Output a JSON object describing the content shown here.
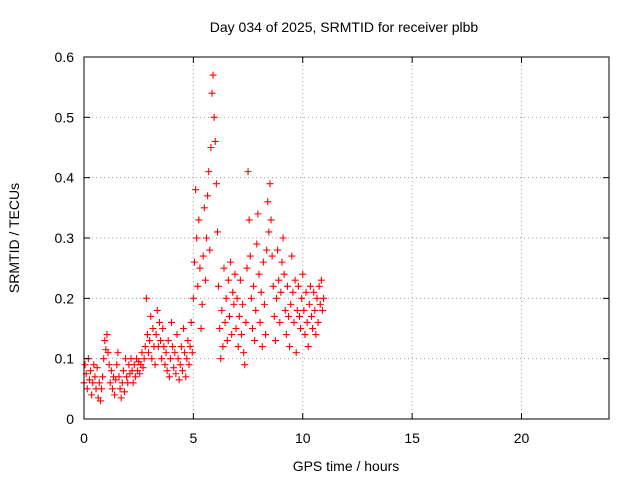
{
  "chart_data": {
    "type": "scatter",
    "title": "Day 034 of 2025, SRMTID for receiver plbb",
    "xlabel": "GPS time / hours",
    "ylabel": "SRMTID / TECUs",
    "xlim": [
      0,
      24
    ],
    "ylim": [
      0,
      0.6
    ],
    "x_ticks": [
      0,
      5,
      10,
      15,
      20
    ],
    "y_ticks": [
      0,
      0.1,
      0.2,
      0.3,
      0.4,
      0.5,
      0.6
    ],
    "x_tick_labels": [
      "0",
      "5",
      "10",
      "15",
      "20"
    ],
    "y_tick_labels": [
      "0",
      "0.1",
      "0.2",
      "0.3",
      "0.4",
      "0.5",
      "0.6"
    ],
    "grid": true,
    "marker": "+",
    "color": "#ff0000",
    "series": [
      {
        "name": "SRMTID",
        "points": [
          [
            0.0,
            0.06
          ],
          [
            0.05,
            0.09
          ],
          [
            0.1,
            0.075
          ],
          [
            0.15,
            0.05
          ],
          [
            0.2,
            0.1
          ],
          [
            0.25,
            0.065
          ],
          [
            0.3,
            0.08
          ],
          [
            0.35,
            0.04
          ],
          [
            0.4,
            0.06
          ],
          [
            0.45,
            0.09
          ],
          [
            0.5,
            0.07
          ],
          [
            0.55,
            0.05
          ],
          [
            0.6,
            0.085
          ],
          [
            0.65,
            0.035
          ],
          [
            0.7,
            0.06
          ],
          [
            0.75,
            0.03
          ],
          [
            0.8,
            0.05
          ],
          [
            0.85,
            0.07
          ],
          [
            0.9,
            0.1
          ],
          [
            0.95,
            0.13
          ],
          [
            1.0,
            0.115
          ],
          [
            1.05,
            0.14
          ],
          [
            1.1,
            0.11
          ],
          [
            1.15,
            0.09
          ],
          [
            1.2,
            0.06
          ],
          [
            1.25,
            0.08
          ],
          [
            1.3,
            0.05
          ],
          [
            1.35,
            0.07
          ],
          [
            1.4,
            0.04
          ],
          [
            1.45,
            0.065
          ],
          [
            1.5,
            0.09
          ],
          [
            1.55,
            0.11
          ],
          [
            1.6,
            0.07
          ],
          [
            1.65,
            0.05
          ],
          [
            1.7,
            0.035
          ],
          [
            1.75,
            0.06
          ],
          [
            1.8,
            0.08
          ],
          [
            1.85,
            0.045
          ],
          [
            1.9,
            0.1
          ],
          [
            1.95,
            0.07
          ],
          [
            2.0,
            0.06
          ],
          [
            2.05,
            0.09
          ],
          [
            2.1,
            0.075
          ],
          [
            2.15,
            0.1
          ],
          [
            2.2,
            0.08
          ],
          [
            2.25,
            0.06
          ],
          [
            2.3,
            0.09
          ],
          [
            2.35,
            0.07
          ],
          [
            2.4,
            0.1
          ],
          [
            2.45,
            0.08
          ],
          [
            2.5,
            0.095
          ],
          [
            2.55,
            0.075
          ],
          [
            2.6,
            0.09
          ],
          [
            2.65,
            0.11
          ],
          [
            2.7,
            0.085
          ],
          [
            2.75,
            0.1
          ],
          [
            2.8,
            0.12
          ],
          [
            2.85,
            0.2
          ],
          [
            2.9,
            0.14
          ],
          [
            2.95,
            0.11
          ],
          [
            3.0,
            0.13
          ],
          [
            3.05,
            0.17
          ],
          [
            3.1,
            0.1
          ],
          [
            3.15,
            0.15
          ],
          [
            3.2,
            0.12
          ],
          [
            3.25,
            0.09
          ],
          [
            3.3,
            0.14
          ],
          [
            3.35,
            0.18
          ],
          [
            3.4,
            0.12
          ],
          [
            3.45,
            0.16
          ],
          [
            3.5,
            0.13
          ],
          [
            3.55,
            0.1
          ],
          [
            3.6,
            0.15
          ],
          [
            3.65,
            0.12
          ],
          [
            3.7,
            0.09
          ],
          [
            3.75,
            0.11
          ],
          [
            3.8,
            0.08
          ],
          [
            3.85,
            0.13
          ],
          [
            3.9,
            0.07
          ],
          [
            3.95,
            0.1
          ],
          [
            4.0,
            0.16
          ],
          [
            4.05,
            0.12
          ],
          [
            4.1,
            0.085
          ],
          [
            4.15,
            0.11
          ],
          [
            4.2,
            0.075
          ],
          [
            4.25,
            0.14
          ],
          [
            4.3,
            0.1
          ],
          [
            4.35,
            0.065
          ],
          [
            4.4,
            0.09
          ],
          [
            4.45,
            0.12
          ],
          [
            4.5,
            0.08
          ],
          [
            4.55,
            0.15
          ],
          [
            4.6,
            0.11
          ],
          [
            4.65,
            0.07
          ],
          [
            4.7,
            0.1
          ],
          [
            4.75,
            0.13
          ],
          [
            4.8,
            0.09
          ],
          [
            4.85,
            0.12
          ],
          [
            4.9,
            0.16
          ],
          [
            4.95,
            0.11
          ],
          [
            5.0,
            0.2
          ],
          [
            5.05,
            0.26
          ],
          [
            5.1,
            0.38
          ],
          [
            5.15,
            0.3
          ],
          [
            5.2,
            0.22
          ],
          [
            5.25,
            0.33
          ],
          [
            5.3,
            0.25
          ],
          [
            5.35,
            0.15
          ],
          [
            5.4,
            0.19
          ],
          [
            5.45,
            0.27
          ],
          [
            5.5,
            0.35
          ],
          [
            5.55,
            0.23
          ],
          [
            5.6,
            0.3
          ],
          [
            5.65,
            0.37
          ],
          [
            5.7,
            0.41
          ],
          [
            5.75,
            0.28
          ],
          [
            5.8,
            0.45
          ],
          [
            5.85,
            0.54
          ],
          [
            5.9,
            0.57
          ],
          [
            5.95,
            0.5
          ],
          [
            6.0,
            0.46
          ],
          [
            6.05,
            0.39
          ],
          [
            6.1,
            0.31
          ],
          [
            6.15,
            0.22
          ],
          [
            6.2,
            0.15
          ],
          [
            6.25,
            0.1
          ],
          [
            6.3,
            0.18
          ],
          [
            6.35,
            0.12
          ],
          [
            6.4,
            0.25
          ],
          [
            6.45,
            0.16
          ],
          [
            6.5,
            0.2
          ],
          [
            6.55,
            0.13
          ],
          [
            6.6,
            0.23
          ],
          [
            6.65,
            0.17
          ],
          [
            6.7,
            0.26
          ],
          [
            6.75,
            0.14
          ],
          [
            6.8,
            0.21
          ],
          [
            6.85,
            0.19
          ],
          [
            6.9,
            0.24
          ],
          [
            6.95,
            0.15
          ],
          [
            7.0,
            0.2
          ],
          [
            7.05,
            0.12
          ],
          [
            7.1,
            0.17
          ],
          [
            7.15,
            0.23
          ],
          [
            7.2,
            0.14
          ],
          [
            7.25,
            0.19
          ],
          [
            7.3,
            0.11
          ],
          [
            7.35,
            0.09
          ],
          [
            7.4,
            0.16
          ],
          [
            7.45,
            0.25
          ],
          [
            7.5,
            0.41
          ],
          [
            7.55,
            0.33
          ],
          [
            7.6,
            0.27
          ],
          [
            7.65,
            0.2
          ],
          [
            7.7,
            0.15
          ],
          [
            7.75,
            0.22
          ],
          [
            7.8,
            0.13
          ],
          [
            7.85,
            0.18
          ],
          [
            7.9,
            0.29
          ],
          [
            7.95,
            0.34
          ],
          [
            8.0,
            0.24
          ],
          [
            8.05,
            0.16
          ],
          [
            8.1,
            0.21
          ],
          [
            8.15,
            0.12
          ],
          [
            8.2,
            0.26
          ],
          [
            8.25,
            0.19
          ],
          [
            8.3,
            0.14
          ],
          [
            8.35,
            0.28
          ],
          [
            8.4,
            0.36
          ],
          [
            8.45,
            0.31
          ],
          [
            8.5,
            0.39
          ],
          [
            8.55,
            0.33
          ],
          [
            8.6,
            0.27
          ],
          [
            8.65,
            0.22
          ],
          [
            8.7,
            0.17
          ],
          [
            8.75,
            0.13
          ],
          [
            8.8,
            0.2
          ],
          [
            8.85,
            0.28
          ],
          [
            8.9,
            0.23
          ],
          [
            8.95,
            0.16
          ],
          [
            9.0,
            0.21
          ],
          [
            9.05,
            0.26
          ],
          [
            9.1,
            0.3
          ],
          [
            9.15,
            0.24
          ],
          [
            9.2,
            0.18
          ],
          [
            9.25,
            0.14
          ],
          [
            9.3,
            0.22
          ],
          [
            9.35,
            0.17
          ],
          [
            9.4,
            0.12
          ],
          [
            9.45,
            0.19
          ],
          [
            9.5,
            0.27
          ],
          [
            9.55,
            0.21
          ],
          [
            9.6,
            0.16
          ],
          [
            9.65,
            0.23
          ],
          [
            9.7,
            0.11
          ],
          [
            9.75,
            0.18
          ],
          [
            9.8,
            0.22
          ],
          [
            9.85,
            0.17
          ],
          [
            9.9,
            0.15
          ],
          [
            9.95,
            0.2
          ],
          [
            10.0,
            0.24
          ],
          [
            10.05,
            0.18
          ],
          [
            10.1,
            0.14
          ],
          [
            10.15,
            0.21
          ],
          [
            10.2,
            0.16
          ],
          [
            10.25,
            0.12
          ],
          [
            10.3,
            0.19
          ],
          [
            10.35,
            0.22
          ],
          [
            10.4,
            0.17
          ],
          [
            10.45,
            0.15
          ],
          [
            10.5,
            0.21
          ],
          [
            10.55,
            0.18
          ],
          [
            10.6,
            0.14
          ],
          [
            10.65,
            0.2
          ],
          [
            10.7,
            0.16
          ],
          [
            10.75,
            0.22
          ],
          [
            10.8,
            0.19
          ],
          [
            10.85,
            0.23
          ],
          [
            10.9,
            0.18
          ],
          [
            10.95,
            0.2
          ]
        ]
      }
    ]
  }
}
